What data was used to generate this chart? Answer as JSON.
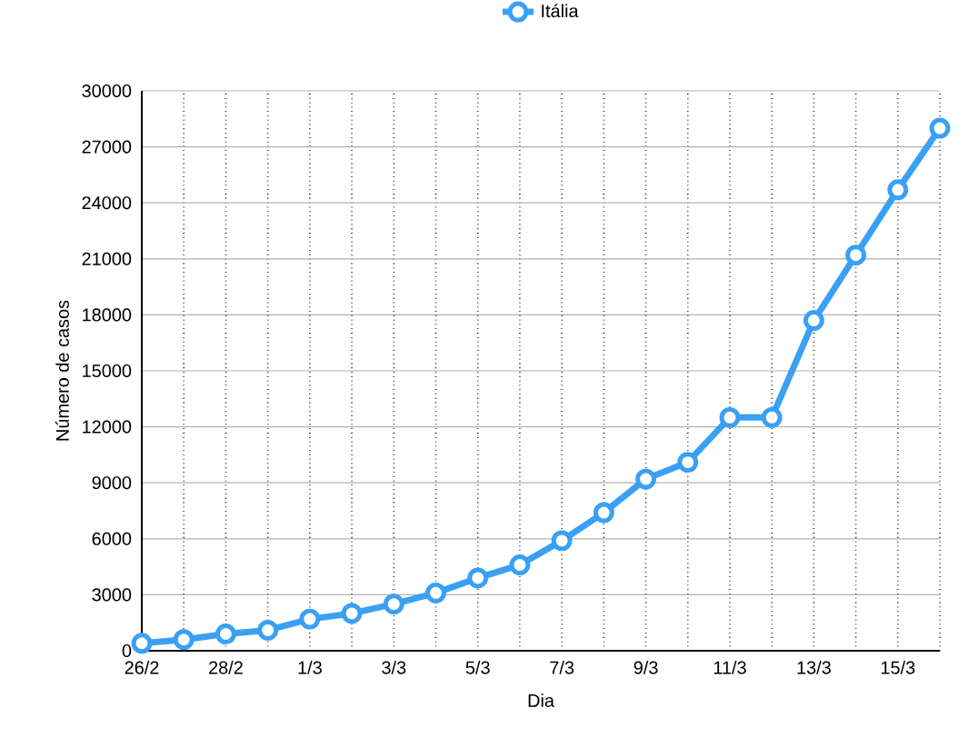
{
  "chart_data": {
    "type": "line",
    "xlabel": "Dia",
    "ylabel": "Número de casos",
    "categories": [
      "26/2",
      null,
      "28/2",
      null,
      "1/3",
      null,
      "3/3",
      null,
      "5/3",
      null,
      "7/3",
      null,
      "9/3",
      null,
      "11/3",
      null,
      "13/3",
      null,
      "15/3",
      null
    ],
    "series": [
      {
        "name": "Itália",
        "color": "#3aa0f5",
        "values": [
          400,
          600,
          900,
          1100,
          1700,
          2000,
          2500,
          3100,
          3900,
          4600,
          5900,
          7400,
          9200,
          10100,
          12500,
          12500,
          17700,
          21200,
          24700,
          28000
        ]
      }
    ],
    "ylim": [
      0,
      30000
    ],
    "yticks": [
      0,
      3000,
      6000,
      9000,
      12000,
      15000,
      18000,
      21000,
      24000,
      27000,
      30000
    ],
    "grid": true,
    "legend": "top",
    "marker": "circle",
    "line_style": "solid"
  }
}
